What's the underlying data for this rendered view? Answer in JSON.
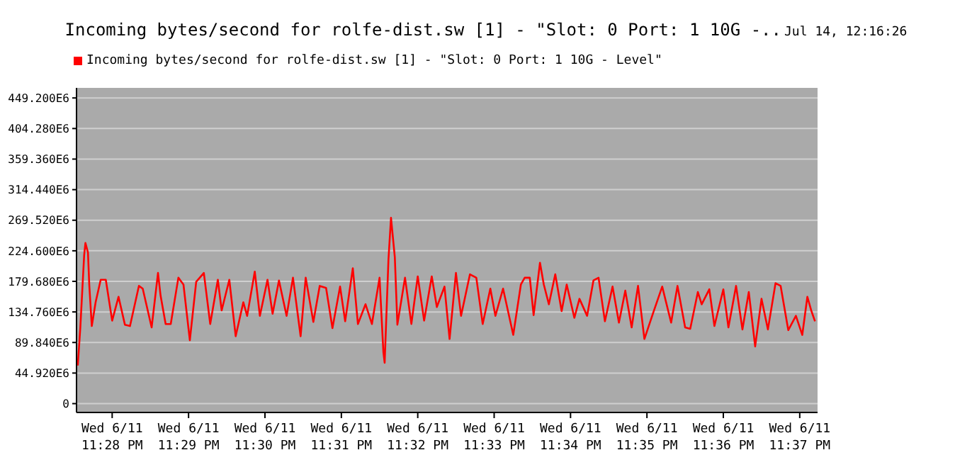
{
  "chart_data": {
    "type": "line",
    "title": "Incoming bytes/second for rolfe-dist.sw [1] - \"Slot: 0 Port: 1 10G -..",
    "subtitle": "Jul 14, 12:16:26",
    "x": [
      "--06-11T23:27:33",
      "--06-11T23:27:35",
      "--06-11T23:27:38",
      "--06-11T23:27:39",
      "--06-11T23:27:41",
      "--06-11T23:27:42",
      "--06-11T23:27:44",
      "--06-11T23:27:47",
      "--06-11T23:27:51",
      "--06-11T23:27:55",
      "--06-11T23:28:00",
      "--06-11T23:28:05",
      "--06-11T23:28:10",
      "--06-11T23:28:14",
      "--06-11T23:28:21",
      "--06-11T23:28:24",
      "--06-11T23:28:31",
      "--06-11T23:28:36",
      "--06-11T23:28:38",
      "--06-11T23:28:42",
      "--06-11T23:28:46",
      "--06-11T23:28:52",
      "--06-11T23:28:56",
      "--06-11T23:29:01",
      "--06-11T23:29:06",
      "--06-11T23:29:12",
      "--06-11T23:29:17",
      "--06-11T23:29:23",
      "--06-11T23:29:26",
      "--06-11T23:29:32",
      "--06-11T23:29:37",
      "--06-11T23:29:43",
      "--06-11T23:29:46",
      "--06-11T23:29:52",
      "--06-11T23:29:56",
      "--06-11T23:30:02",
      "--06-11T23:30:06",
      "--06-11T23:30:11",
      "--06-11T23:30:17",
      "--06-11T23:30:22",
      "--06-11T23:30:28",
      "--06-11T23:30:32",
      "--06-11T23:30:38",
      "--06-11T23:30:43",
      "--06-11T23:30:48",
      "--06-11T23:30:53",
      "--06-11T23:30:59",
      "--06-11T23:31:03",
      "--06-11T23:31:09",
      "--06-11T23:31:13",
      "--06-11T23:31:19",
      "--06-11T23:31:24",
      "--06-11T23:31:30",
      "--06-11T23:31:33",
      "--06-11T23:31:34",
      "--06-11T23:31:37",
      "--06-11T23:31:39",
      "--06-11T23:31:42",
      "--06-11T23:31:44",
      "--06-11T23:31:50",
      "--06-11T23:31:55",
      "--06-11T23:32:00",
      "--06-11T23:32:05",
      "--06-11T23:32:11",
      "--06-11T23:32:15",
      "--06-11T23:32:21",
      "--06-11T23:32:25",
      "--06-11T23:32:30",
      "--06-11T23:32:34",
      "--06-11T23:32:41",
      "--06-11T23:32:46",
      "--06-11T23:32:51",
      "--06-11T23:32:57",
      "--06-11T23:33:01",
      "--06-11T23:33:07",
      "--06-11T23:33:15",
      "--06-11T23:33:21",
      "--06-11T23:33:24",
      "--06-11T23:33:28",
      "--06-11T23:33:31",
      "--06-11T23:33:36",
      "--06-11T23:33:39",
      "--06-11T23:33:43",
      "--06-11T23:33:48",
      "--06-11T23:33:53",
      "--06-11T23:33:57",
      "--06-11T23:34:03",
      "--06-11T23:34:07",
      "--06-11T23:34:13",
      "--06-11T23:34:18",
      "--06-11T23:34:22",
      "--06-11T23:34:27",
      "--06-11T23:34:33",
      "--06-11T23:34:38",
      "--06-11T23:34:43",
      "--06-11T23:34:48",
      "--06-11T23:34:53",
      "--06-11T23:34:58",
      "--06-11T23:35:05",
      "--06-11T23:35:12",
      "--06-11T23:35:19",
      "--06-11T23:35:24",
      "--06-11T23:35:30",
      "--06-11T23:35:34",
      "--06-11T23:35:40",
      "--06-11T23:35:43",
      "--06-11T23:35:49",
      "--06-11T23:35:53",
      "--06-11T23:36:00",
      "--06-11T23:36:04",
      "--06-11T23:36:10",
      "--06-11T23:36:15",
      "--06-11T23:36:20",
      "--06-11T23:36:25",
      "--06-11T23:36:30",
      "--06-11T23:36:35",
      "--06-11T23:36:41",
      "--06-11T23:36:45",
      "--06-11T23:36:51",
      "--06-11T23:36:57",
      "--06-11T23:37:02",
      "--06-11T23:37:06",
      "--06-11T23:37:09",
      "--06-11T23:37:12"
    ],
    "series": [
      {
        "name": "Incoming bytes/second for rolfe-dist.sw [1] - \"Slot: 0 Port: 1 10G - Level\"",
        "color": "#ff0000",
        "values": [
          56000000,
          112000000,
          218000000,
          236000000,
          222000000,
          175000000,
          114000000,
          149000000,
          182000000,
          182000000,
          122000000,
          157000000,
          116000000,
          114000000,
          173000000,
          169000000,
          112000000,
          192000000,
          159000000,
          117000000,
          117000000,
          185000000,
          175000000,
          93000000,
          179000000,
          192000000,
          117000000,
          182000000,
          137000000,
          182000000,
          99000000,
          149000000,
          129000000,
          194000000,
          129000000,
          182000000,
          132000000,
          181000000,
          129000000,
          185000000,
          99000000,
          185000000,
          120000000,
          173000000,
          170000000,
          111000000,
          172000000,
          121000000,
          199000000,
          117000000,
          146000000,
          117000000,
          185000000,
          76000000,
          60000000,
          212000000,
          273000000,
          215000000,
          116000000,
          185000000,
          117000000,
          187000000,
          122000000,
          187000000,
          142000000,
          172000000,
          95000000,
          192000000,
          129000000,
          190000000,
          185000000,
          117000000,
          169000000,
          129000000,
          169000000,
          101000000,
          175000000,
          185000000,
          185000000,
          130000000,
          207000000,
          175000000,
          146000000,
          190000000,
          136000000,
          175000000,
          126000000,
          154000000,
          129000000,
          181000000,
          185000000,
          121000000,
          172000000,
          119000000,
          166000000,
          112000000,
          173000000,
          95000000,
          134000000,
          172000000,
          119000000,
          173000000,
          112000000,
          110000000,
          164000000,
          146000000,
          168000000,
          114000000,
          168000000,
          112000000,
          173000000,
          109000000,
          164000000,
          84000000,
          154000000,
          109000000,
          177000000,
          173000000,
          108000000,
          129000000,
          101000000,
          157000000,
          137000000,
          121000000
        ]
      }
    ],
    "xlim": [
      "--06-11T23:27:32",
      "--06-11T23:37:14"
    ],
    "xticks": [
      {
        "value": "--06-11T23:28",
        "label": "Wed 6/11\n11:28 PM"
      },
      {
        "value": "--06-11T23:29",
        "label": "Wed 6/11\n11:29 PM"
      },
      {
        "value": "--06-11T23:30",
        "label": "Wed 6/11\n11:30 PM"
      },
      {
        "value": "--06-11T23:31",
        "label": "Wed 6/11\n11:31 PM"
      },
      {
        "value": "--06-11T23:32",
        "label": "Wed 6/11\n11:32 PM"
      },
      {
        "value": "--06-11T23:33",
        "label": "Wed 6/11\n11:33 PM"
      },
      {
        "value": "--06-11T23:34",
        "label": "Wed 6/11\n11:34 PM"
      },
      {
        "value": "--06-11T23:35",
        "label": "Wed 6/11\n11:35 PM"
      },
      {
        "value": "--06-11T23:36",
        "label": "Wed 6/11\n11:36 PM"
      },
      {
        "value": "--06-11T23:37",
        "label": "Wed 6/11\n11:37 PM"
      }
    ],
    "ylim": [
      -13000000,
      464000000
    ],
    "yticks": [
      0,
      {
        "value": 44920000,
        "label": "44.920E6"
      },
      {
        "value": 89840000,
        "label": "89.840E6"
      },
      {
        "value": 134760000,
        "label": "134.760E6"
      },
      {
        "value": 179680000,
        "label": "179.680E6"
      },
      {
        "value": 224600000,
        "label": "224.600E6"
      },
      {
        "value": 269520000,
        "label": "269.520E6"
      },
      {
        "value": 314440000,
        "label": "314.440E6"
      },
      {
        "value": 359360000,
        "label": "359.360E6"
      },
      {
        "value": 404280000,
        "label": "404.280E6"
      },
      {
        "value": 449200000,
        "label": "449.200E6"
      }
    ],
    "grid": "y",
    "legend": "top left",
    "marker": "none",
    "line_style": "solid"
  }
}
